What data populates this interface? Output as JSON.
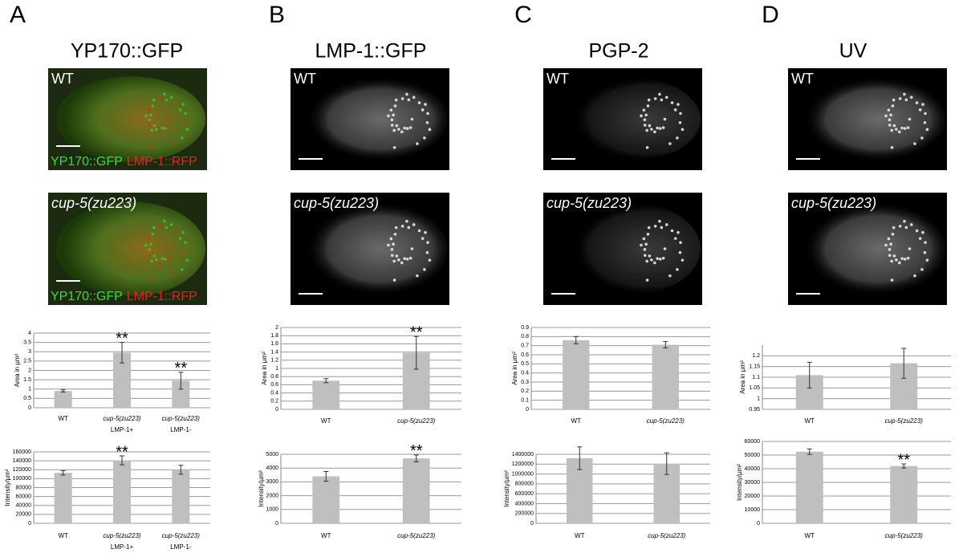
{
  "panels": [
    {
      "letter": "A",
      "title": "YP170::GFP",
      "images": [
        {
          "label": "WT",
          "caption": [
            {
              "text": "YP170::GFP",
              "color": "#3ddc3d"
            },
            {
              "text": "LMP-1::RFP",
              "color": "#ee2020"
            }
          ]
        },
        {
          "label": "cup-5(zu223)",
          "caption": [
            {
              "text": "YP170::GFP",
              "color": "#3ddc3d"
            },
            {
              "text": "LMP-1::RFP",
              "color": "#ee2020"
            }
          ]
        }
      ]
    },
    {
      "letter": "B",
      "title": "LMP-1::GFP",
      "images": [
        {
          "label": "WT"
        },
        {
          "label": "cup-5(zu223)"
        }
      ]
    },
    {
      "letter": "C",
      "title": "PGP-2",
      "images": [
        {
          "label": "WT"
        },
        {
          "label": "cup-5(zu223)"
        }
      ]
    },
    {
      "letter": "D",
      "title": "UV",
      "images": [
        {
          "label": "WT"
        },
        {
          "label": "cup-5(zu223)"
        }
      ]
    }
  ],
  "chart_data": [
    {
      "type": "bar",
      "y_label": "Area in µm²",
      "categories": [
        "WT",
        "cup-5(zu223)",
        "cup-5(zu223)"
      ],
      "category_sublabels": [
        null,
        "LMP-1+",
        "LMP-1-"
      ],
      "values": [
        0.9,
        2.95,
        1.45
      ],
      "errors": [
        0.06,
        0.55,
        0.45
      ],
      "value_annotations": [
        null,
        "**",
        "**"
      ],
      "color": "#bfbfbf",
      "ylim": [
        0,
        4
      ],
      "yticks": [
        0,
        0.5,
        1,
        1.5,
        2,
        2.5,
        3,
        3.5,
        4
      ],
      "grid": true
    },
    {
      "type": "bar",
      "y_label": "Intensity/µm²",
      "categories": [
        "WT",
        "cup-5(zu223)",
        "cup-5(zu223)"
      ],
      "category_sublabels": [
        null,
        "LMP-1+",
        "LMP-1-"
      ],
      "values": [
        113000,
        141000,
        120000
      ],
      "errors": [
        5000,
        10000,
        10000
      ],
      "value_annotations": [
        null,
        "**",
        null
      ],
      "color": "#bfbfbf",
      "ylim": [
        0,
        160000
      ],
      "yticks": [
        0,
        20000,
        40000,
        60000,
        80000,
        100000,
        120000,
        140000,
        160000
      ],
      "grid": true
    },
    {
      "type": "bar",
      "y_label": "Area in µm²",
      "categories": [
        "WT",
        "cup-5(zu223)"
      ],
      "values": [
        0.7,
        1.38
      ],
      "errors": [
        0.05,
        0.4
      ],
      "value_annotations": [
        null,
        "**"
      ],
      "color": "#bfbfbf",
      "ylim": [
        0,
        2
      ],
      "yticks": [
        0,
        0.2,
        0.4,
        0.6,
        0.8,
        1,
        1.2,
        1.4,
        1.6,
        1.8,
        2
      ],
      "grid": true
    },
    {
      "type": "bar",
      "y_label": "Intensity/µm²",
      "categories": [
        "WT",
        "cup-5(zu223)"
      ],
      "values": [
        3400,
        4700
      ],
      "errors": [
        350,
        250
      ],
      "value_annotations": [
        null,
        "**"
      ],
      "color": "#bfbfbf",
      "ylim": [
        0,
        5000
      ],
      "yticks": [
        0,
        1000,
        2000,
        3000,
        4000,
        5000
      ],
      "grid": true
    },
    {
      "type": "bar",
      "y_label": "Area in µm²",
      "categories": [
        "WT",
        "cup-5(zu223)"
      ],
      "values": [
        0.76,
        0.71
      ],
      "errors": [
        0.04,
        0.035
      ],
      "value_annotations": [
        null,
        null
      ],
      "color": "#bfbfbf",
      "ylim": [
        0,
        0.9
      ],
      "yticks": [
        0,
        0.1,
        0.2,
        0.3,
        0.4,
        0.5,
        0.6,
        0.7,
        0.8,
        0.9
      ],
      "grid": true
    },
    {
      "type": "bar",
      "y_label": "Intensity/µm²",
      "categories": [
        "WT",
        "cup-5(zu223)"
      ],
      "values": [
        1320000,
        1210000
      ],
      "errors": [
        230000,
        220000
      ],
      "value_annotations": [
        null,
        null
      ],
      "color": "#bfbfbf",
      "ylim": [
        0,
        1400000
      ],
      "yticks": [
        0,
        200000,
        400000,
        600000,
        800000,
        1000000,
        1200000,
        1400000
      ],
      "grid": true
    },
    {
      "type": "bar",
      "y_label": "Area in µm²",
      "categories": [
        "WT",
        "cup-5(zu223)"
      ],
      "values": [
        1.11,
        1.165
      ],
      "errors": [
        0.06,
        0.07
      ],
      "value_annotations": [
        null,
        null
      ],
      "color": "#bfbfbf",
      "ylim": [
        0.95,
        1.25
      ],
      "yticks": [
        0.95,
        1,
        1.05,
        1.1,
        1.15,
        1.2
      ],
      "grid": true
    },
    {
      "type": "bar",
      "y_label": "Intensity/µm²",
      "categories": [
        "WT",
        "cup-5(zu223)"
      ],
      "values": [
        52500,
        42000
      ],
      "errors": [
        2000,
        1500
      ],
      "value_annotations": [
        null,
        "**"
      ],
      "color": "#bfbfbf",
      "ylim": [
        0,
        60000
      ],
      "yticks": [
        0,
        10000,
        20000,
        30000,
        40000,
        50000,
        60000
      ],
      "grid": true
    }
  ]
}
